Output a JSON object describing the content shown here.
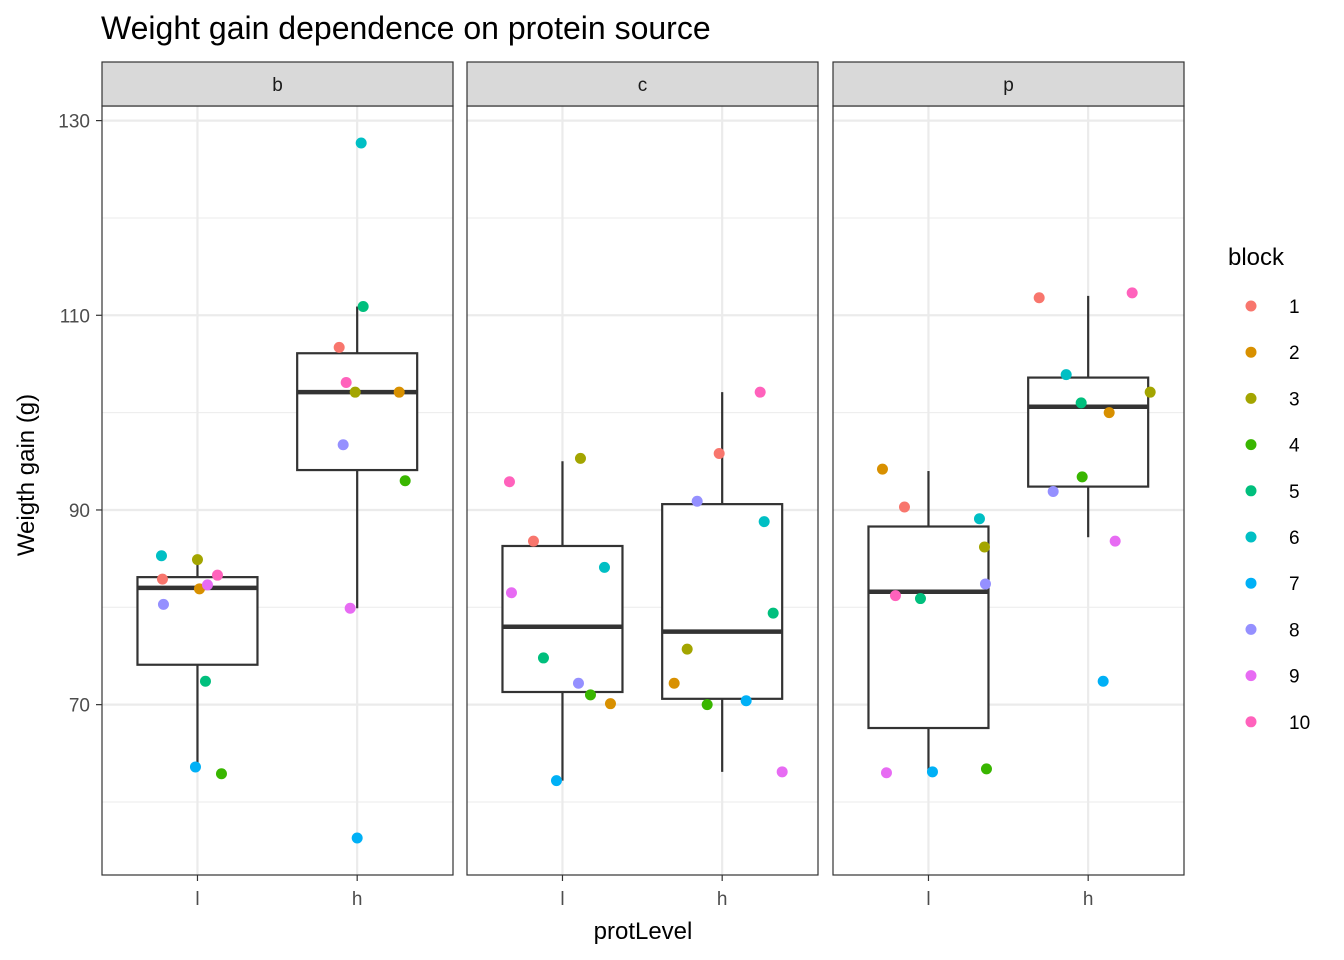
{
  "chart_data": {
    "type": "boxplot",
    "title": "Weight gain dependence on protein source",
    "xlabel": "protLevel",
    "ylabel": "Weigth gain (g)",
    "facets": [
      "b",
      "c",
      "p"
    ],
    "categories": [
      "l",
      "h"
    ],
    "ylim": [
      52.5,
      131.5
    ],
    "y_ticks": [
      70,
      90,
      110,
      130
    ],
    "legend": {
      "title": "block",
      "position": "right",
      "entries": [
        "1",
        "2",
        "3",
        "4",
        "5",
        "6",
        "7",
        "8",
        "9",
        "10"
      ],
      "colors": [
        "#F8766D",
        "#D89000",
        "#A3A500",
        "#39B600",
        "#00BF7D",
        "#00BFC4",
        "#00B0F6",
        "#9590FF",
        "#E76BF3",
        "#FF62BC"
      ]
    },
    "grid": true,
    "boxes": [
      {
        "facet": "b",
        "category": "l",
        "lower_whisker": 63.6,
        "q1": 74.1,
        "median": 82.0,
        "q3": 83.1,
        "upper_whisker": 84.9
      },
      {
        "facet": "b",
        "category": "h",
        "lower_whisker": 79.9,
        "q1": 94.1,
        "median": 102.1,
        "q3": 106.1,
        "upper_whisker": 110.9
      },
      {
        "facet": "c",
        "category": "l",
        "lower_whisker": 62.2,
        "q1": 71.3,
        "median": 78.0,
        "q3": 86.3,
        "upper_whisker": 95.0
      },
      {
        "facet": "c",
        "category": "h",
        "lower_whisker": 63.1,
        "q1": 70.6,
        "median": 77.5,
        "q3": 90.6,
        "upper_whisker": 102.1
      },
      {
        "facet": "p",
        "category": "l",
        "lower_whisker": 63.1,
        "q1": 67.6,
        "median": 81.6,
        "q3": 88.3,
        "upper_whisker": 94.0
      },
      {
        "facet": "p",
        "category": "h",
        "lower_whisker": 87.2,
        "q1": 92.4,
        "median": 100.6,
        "q3": 103.6,
        "upper_whisker": 112.0
      }
    ],
    "points": [
      {
        "facet": "b",
        "category": "l",
        "block": "1",
        "y": 82.9
      },
      {
        "facet": "b",
        "category": "l",
        "block": "2",
        "y": 81.9
      },
      {
        "facet": "b",
        "category": "l",
        "block": "3",
        "y": 84.9
      },
      {
        "facet": "b",
        "category": "l",
        "block": "4",
        "y": 62.9
      },
      {
        "facet": "b",
        "category": "l",
        "block": "5",
        "y": 72.4
      },
      {
        "facet": "b",
        "category": "l",
        "block": "6",
        "y": 85.3
      },
      {
        "facet": "b",
        "category": "l",
        "block": "7",
        "y": 63.6
      },
      {
        "facet": "b",
        "category": "l",
        "block": "8",
        "y": 80.3
      },
      {
        "facet": "b",
        "category": "l",
        "block": "9",
        "y": 82.3
      },
      {
        "facet": "b",
        "category": "l",
        "block": "10",
        "y": 83.3
      },
      {
        "facet": "b",
        "category": "h",
        "block": "1",
        "y": 106.7
      },
      {
        "facet": "b",
        "category": "h",
        "block": "2",
        "y": 102.1
      },
      {
        "facet": "b",
        "category": "h",
        "block": "3",
        "y": 102.1
      },
      {
        "facet": "b",
        "category": "h",
        "block": "4",
        "y": 93.0
      },
      {
        "facet": "b",
        "category": "h",
        "block": "5",
        "y": 110.9
      },
      {
        "facet": "b",
        "category": "h",
        "block": "6",
        "y": 127.7
      },
      {
        "facet": "b",
        "category": "h",
        "block": "7",
        "y": 56.3
      },
      {
        "facet": "b",
        "category": "h",
        "block": "8",
        "y": 96.7
      },
      {
        "facet": "b",
        "category": "h",
        "block": "9",
        "y": 79.9
      },
      {
        "facet": "b",
        "category": "h",
        "block": "10",
        "y": 103.1
      },
      {
        "facet": "c",
        "category": "l",
        "block": "1",
        "y": 86.8
      },
      {
        "facet": "c",
        "category": "l",
        "block": "2",
        "y": 70.1
      },
      {
        "facet": "c",
        "category": "l",
        "block": "3",
        "y": 95.3
      },
      {
        "facet": "c",
        "category": "l",
        "block": "4",
        "y": 71.0
      },
      {
        "facet": "c",
        "category": "l",
        "block": "5",
        "y": 74.8
      },
      {
        "facet": "c",
        "category": "l",
        "block": "6",
        "y": 84.1
      },
      {
        "facet": "c",
        "category": "l",
        "block": "7",
        "y": 62.2
      },
      {
        "facet": "c",
        "category": "l",
        "block": "8",
        "y": 72.2
      },
      {
        "facet": "c",
        "category": "l",
        "block": "9",
        "y": 81.5
      },
      {
        "facet": "c",
        "category": "l",
        "block": "10",
        "y": 92.9
      },
      {
        "facet": "c",
        "category": "h",
        "block": "1",
        "y": 95.8
      },
      {
        "facet": "c",
        "category": "h",
        "block": "2",
        "y": 72.2
      },
      {
        "facet": "c",
        "category": "h",
        "block": "3",
        "y": 75.7
      },
      {
        "facet": "c",
        "category": "h",
        "block": "4",
        "y": 70.0
      },
      {
        "facet": "c",
        "category": "h",
        "block": "5",
        "y": 79.4
      },
      {
        "facet": "c",
        "category": "h",
        "block": "6",
        "y": 88.8
      },
      {
        "facet": "c",
        "category": "h",
        "block": "7",
        "y": 70.4
      },
      {
        "facet": "c",
        "category": "h",
        "block": "8",
        "y": 90.9
      },
      {
        "facet": "c",
        "category": "h",
        "block": "9",
        "y": 63.1
      },
      {
        "facet": "c",
        "category": "h",
        "block": "10",
        "y": 102.1
      },
      {
        "facet": "p",
        "category": "l",
        "block": "1",
        "y": 90.3
      },
      {
        "facet": "p",
        "category": "l",
        "block": "2",
        "y": 94.2
      },
      {
        "facet": "p",
        "category": "l",
        "block": "3",
        "y": 86.2
      },
      {
        "facet": "p",
        "category": "l",
        "block": "4",
        "y": 63.4
      },
      {
        "facet": "p",
        "category": "l",
        "block": "5",
        "y": 80.9
      },
      {
        "facet": "p",
        "category": "l",
        "block": "6",
        "y": 89.1
      },
      {
        "facet": "p",
        "category": "l",
        "block": "7",
        "y": 63.1
      },
      {
        "facet": "p",
        "category": "l",
        "block": "8",
        "y": 82.4
      },
      {
        "facet": "p",
        "category": "l",
        "block": "9",
        "y": 63.0
      },
      {
        "facet": "p",
        "category": "l",
        "block": "10",
        "y": 81.2
      },
      {
        "facet": "p",
        "category": "h",
        "block": "1",
        "y": 111.8
      },
      {
        "facet": "p",
        "category": "h",
        "block": "2",
        "y": 100.0
      },
      {
        "facet": "p",
        "category": "h",
        "block": "3",
        "y": 102.1
      },
      {
        "facet": "p",
        "category": "h",
        "block": "4",
        "y": 93.4
      },
      {
        "facet": "p",
        "category": "h",
        "block": "5",
        "y": 101.0
      },
      {
        "facet": "p",
        "category": "h",
        "block": "6",
        "y": 103.9
      },
      {
        "facet": "p",
        "category": "h",
        "block": "7",
        "y": 72.4
      },
      {
        "facet": "p",
        "category": "h",
        "block": "8",
        "y": 91.9
      },
      {
        "facet": "p",
        "category": "h",
        "block": "9",
        "y": 86.8
      },
      {
        "facet": "p",
        "category": "h",
        "block": "10",
        "y": 112.3
      }
    ]
  }
}
